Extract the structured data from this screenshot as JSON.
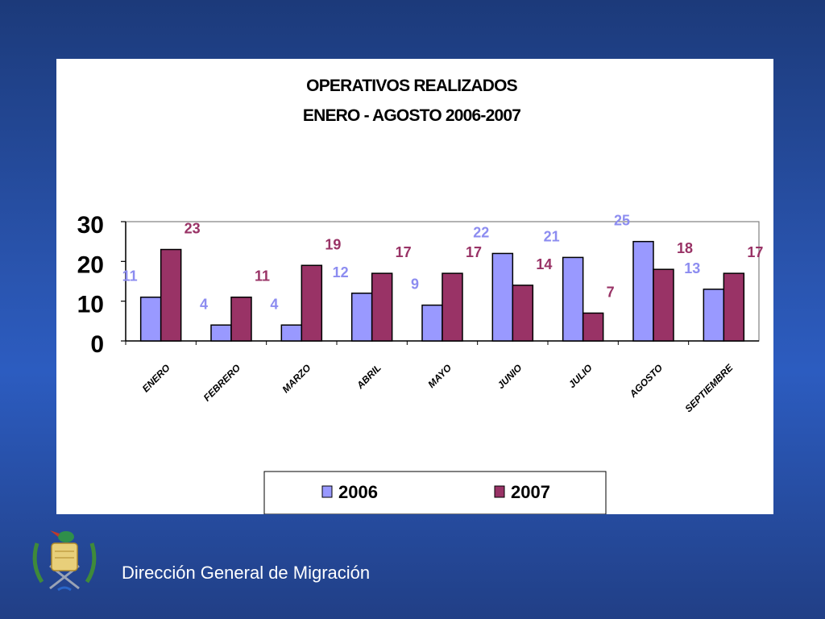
{
  "footer": {
    "organization": "Dirección General de Migración"
  },
  "chart_data": {
    "type": "bar",
    "title": [
      "OPERATIVOS REALIZADOS",
      "ENERO - AGOSTO 2006-2007"
    ],
    "categories": [
      "ENERO",
      "FEBRERO",
      "MARZO",
      "ABRIL",
      "MAYO",
      "JUNIO",
      "JULIO",
      "AGOSTO",
      "SEPTIEMBRE"
    ],
    "series": [
      {
        "name": "2006",
        "values": [
          11,
          4,
          4,
          12,
          9,
          22,
          21,
          25,
          13
        ],
        "color": "#9999ff",
        "label_color": "#8c8cf0"
      },
      {
        "name": "2007",
        "values": [
          23,
          11,
          19,
          17,
          17,
          14,
          7,
          18,
          17
        ],
        "color": "#993366",
        "label_color": "#993366"
      }
    ],
    "ylim": [
      0,
      30
    ],
    "yticks": [
      0,
      10,
      20,
      30
    ],
    "grid": false,
    "legend_position": "bottom"
  }
}
